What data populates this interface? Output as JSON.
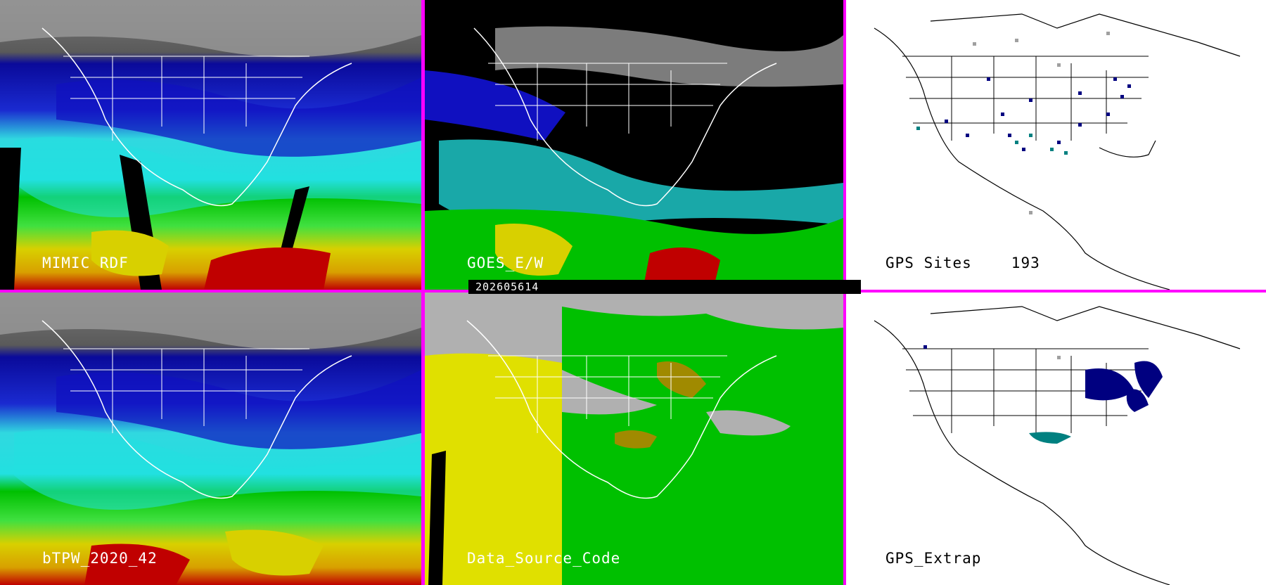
{
  "panels": [
    {
      "caption": "MIMIC RDF"
    },
    {
      "caption": "GOES_E/W"
    },
    {
      "caption": "GPS Sites",
      "count": "193"
    },
    {
      "caption": "bTPW_2020_42"
    },
    {
      "caption": "Data_Source_Code"
    },
    {
      "caption": "GPS_Extrap"
    }
  ],
  "timestamp": "202605614",
  "colors": {
    "divider": "#ff00ff",
    "tpw_scale": [
      "#808080",
      "#0a0aa0",
      "#2a2ad8",
      "#22e0e0",
      "#00c000",
      "#40ff40",
      "#e0e000",
      "#d8a000",
      "#d00000",
      "#ffffff"
    ],
    "source_code": [
      "#b0b0b0",
      "#e0e000",
      "#00c000",
      "#a08a00",
      "#000000"
    ],
    "gps_sites": [
      "#000080",
      "#008080",
      "#a0a0a0"
    ]
  }
}
